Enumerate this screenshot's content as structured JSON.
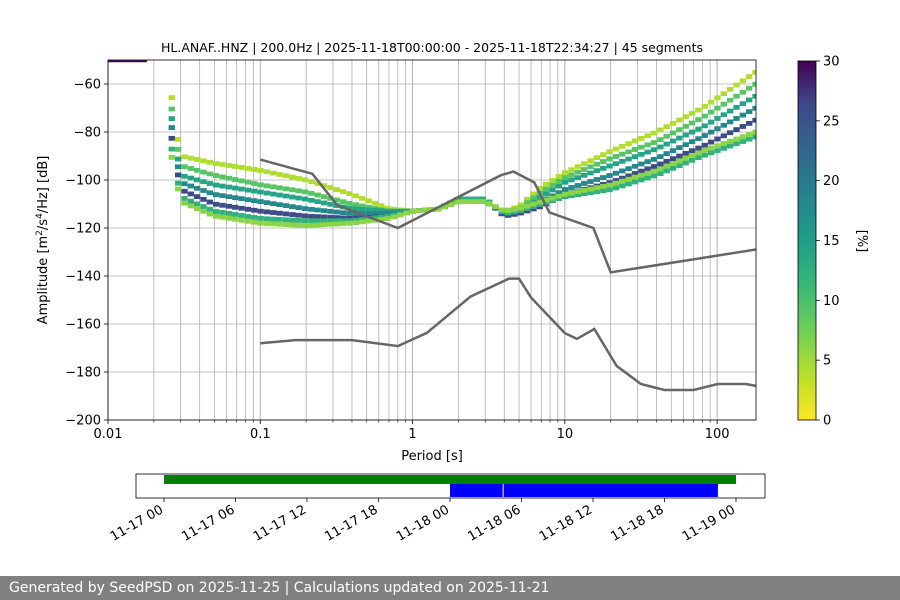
{
  "chart_data": {
    "type": "heatmap",
    "title": "HL.ANAF..HNZ | 200.0Hz | 2025-11-18T00:00:00 - 2025-11-18T22:34:27 | 45 segments",
    "xlabel": "Period [s]",
    "ylabel_parts": [
      "Amplitude [m",
      "2",
      "/s",
      "4",
      "/Hz] [dB]"
    ],
    "x_scale": "log",
    "xlim": [
      0.01,
      180
    ],
    "ylim": [
      -200,
      -50
    ],
    "grid": true,
    "x_tick_labels": [
      "0.01",
      "0.1",
      "1",
      "10",
      "100"
    ],
    "x_ticks": [
      0.01,
      0.1,
      1,
      10,
      100
    ],
    "y_ticks": [
      -60,
      -80,
      -100,
      -120,
      -140,
      -160,
      -180,
      -200
    ],
    "y_tick_labels": [
      "−60",
      "−80",
      "−100",
      "−120",
      "−140",
      "−160",
      "−180",
      "−200"
    ],
    "colorbar": {
      "label": "[%]",
      "range": [
        0,
        30
      ],
      "ticks": [
        0,
        5,
        10,
        15,
        20,
        25,
        30
      ],
      "colormap": "viridis_r",
      "colors": [
        "#fde725",
        "#5ec962",
        "#21918c",
        "#3b528b",
        "#440154"
      ]
    },
    "noise_models": {
      "color": "#666666",
      "high": {
        "name": "NHNM",
        "x": [
          0.1,
          0.22,
          0.32,
          0.8,
          3.8,
          4.6,
          6.3,
          7.9,
          15.4,
          20,
          354.8
        ],
        "y": [
          -91.5,
          -97.4,
          -110.5,
          -120,
          -98,
          -96.5,
          -101,
          -113.5,
          -120,
          -138.5,
          -126
        ]
      },
      "low": {
        "name": "NLNM",
        "x": [
          0.1,
          0.17,
          0.4,
          0.8,
          1.24,
          2.4,
          4.3,
          5,
          6,
          10,
          12,
          15.6,
          21.9,
          31.6,
          45,
          70,
          101,
          154,
          180
        ],
        "y": [
          -168,
          -166.7,
          -166.7,
          -169.2,
          -163.7,
          -148.6,
          -141.1,
          -141.1,
          -149,
          -163.8,
          -166.2,
          -162.1,
          -177.5,
          -185,
          -187.5,
          -187.5,
          -185,
          -185,
          -185.8
        ]
      }
    },
    "psd_bands": [
      {
        "x": [
          0.025,
          0.03,
          0.05,
          0.1,
          0.2,
          0.4,
          0.7,
          1.0,
          1.5,
          2.0,
          3.0,
          4.0,
          5.0,
          7.0,
          10,
          20,
          40,
          80,
          180
        ],
        "y": [
          -57,
          -90,
          -93,
          -96,
          -100,
          -106,
          -112,
          -113,
          -112,
          -109,
          -109,
          -113,
          -111,
          -103,
          -97,
          -88,
          -80,
          -70,
          -55
        ],
        "pct": 4
      },
      {
        "x": [
          0.025,
          0.03,
          0.05,
          0.1,
          0.2,
          0.4,
          0.7,
          1.0,
          1.5,
          2.0,
          3.0,
          4.0,
          5.0,
          7.0,
          10,
          20,
          40,
          80,
          180
        ],
        "y": [
          -62,
          -94,
          -98,
          -102,
          -105,
          -110,
          -113,
          -113,
          -112,
          -109,
          -109,
          -114,
          -112,
          -105,
          -99,
          -91,
          -84,
          -74,
          -60
        ],
        "pct": 9
      },
      {
        "x": [
          0.025,
          0.03,
          0.05,
          0.1,
          0.2,
          0.4,
          0.7,
          1.0,
          1.5,
          2.0,
          3.0,
          4.0,
          5.0,
          7.0,
          10,
          20,
          40,
          80,
          180
        ],
        "y": [
          -66,
          -98,
          -102,
          -105,
          -108,
          -112,
          -113,
          -113,
          -112,
          -108,
          -108,
          -114,
          -113,
          -107,
          -101,
          -94,
          -87,
          -78,
          -65
        ],
        "pct": 14
      },
      {
        "x": [
          0.025,
          0.03,
          0.05,
          0.1,
          0.2,
          0.4,
          0.7,
          1.0,
          1.5,
          2.0,
          3.0,
          4.0,
          5.0,
          7.0,
          10,
          20,
          40,
          80,
          180
        ],
        "y": [
          -70,
          -101,
          -106,
          -109,
          -112,
          -114,
          -114,
          -113,
          -112,
          -108,
          -108,
          -115,
          -113,
          -109,
          -104,
          -98,
          -91,
          -82,
          -70
        ],
        "pct": 18
      },
      {
        "x": [
          0.025,
          0.03,
          0.05,
          0.1,
          0.2,
          0.4,
          0.7,
          1.0,
          1.5,
          2.0,
          3.0,
          4.0,
          5.0,
          7.0,
          10,
          20,
          40,
          80,
          180
        ],
        "y": [
          -75,
          -104,
          -110,
          -113,
          -115,
          -116,
          -115,
          -113,
          -112,
          -108,
          -108,
          -115,
          -114,
          -111,
          -106,
          -101,
          -94,
          -86,
          -75
        ],
        "pct": 26
      },
      {
        "x": [
          0.025,
          0.03,
          0.05,
          0.1,
          0.2,
          0.4,
          0.7,
          1.0,
          1.5,
          2.0,
          3.0,
          4.0,
          5.0,
          7.0,
          10,
          20,
          40,
          80,
          180
        ],
        "y": [
          -80,
          -107,
          -113,
          -116,
          -117,
          -117,
          -115,
          -113,
          -112,
          -108,
          -108,
          -114,
          -113,
          -110,
          -107,
          -104,
          -98,
          -90,
          -82
        ],
        "pct": 12
      },
      {
        "x": [
          0.025,
          0.03,
          0.05,
          0.1,
          0.2,
          0.4,
          0.7,
          1.0,
          1.5,
          2.0,
          3.0,
          4.0,
          5.0,
          7.0,
          10,
          20,
          40,
          80,
          180
        ],
        "y": [
          -84,
          -109,
          -115,
          -118,
          -119,
          -118,
          -116,
          -113,
          -112,
          -109,
          -109,
          -113,
          -112,
          -109,
          -106,
          -102,
          -96,
          -88,
          -80
        ],
        "pct": 6
      }
    ],
    "timeline": {
      "x_range": [
        "2025-11-17 00:00",
        "2025-11-19 00:00"
      ],
      "tick_labels": [
        "11-17 00",
        "11-17 06",
        "11-17 12",
        "11-17 18",
        "11-18 00",
        "11-18 06",
        "11-18 12",
        "11-18 18",
        "11-19 00"
      ],
      "available": {
        "start": "2025-11-17 00:00",
        "end": "2025-11-19 00:00",
        "color": "#008000"
      },
      "used": [
        {
          "start": "2025-11-18 00:00",
          "end": "2025-11-18 04:30",
          "color": "#0000ff"
        },
        {
          "start": "2025-11-18 04:30",
          "end": "2025-11-18 22:34",
          "color": "#0000ff"
        }
      ]
    }
  },
  "footer": {
    "text": "Generated by SeedPSD on 2025-11-25 | Calculations updated on 2025-11-21"
  }
}
